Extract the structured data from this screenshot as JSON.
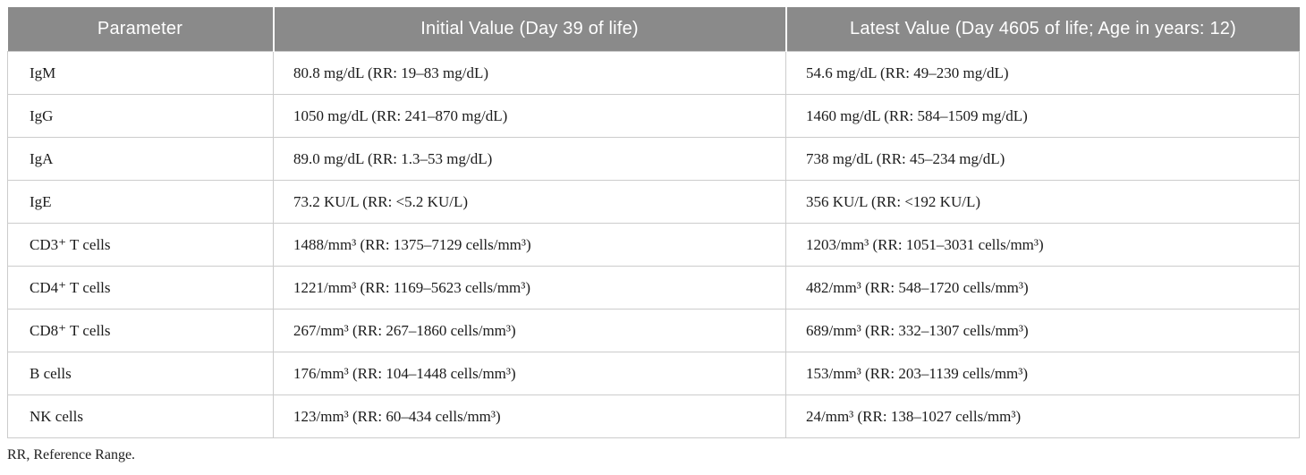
{
  "table": {
    "columns": [
      "Parameter",
      "Initial Value (Day 39 of life)",
      "Latest Value (Day 4605 of life; Age in years: 12)"
    ],
    "rows": [
      {
        "param": "IgM",
        "initial": "80.8 mg/dL (RR: 19–83 mg/dL)",
        "latest": "54.6 mg/dL (RR: 49–230 mg/dL)"
      },
      {
        "param": "IgG",
        "initial": "1050 mg/dL (RR: 241–870 mg/dL)",
        "latest": "1460 mg/dL (RR: 584–1509 mg/dL)"
      },
      {
        "param": "IgA",
        "initial": "89.0 mg/dL (RR: 1.3–53 mg/dL)",
        "latest": "738 mg/dL (RR: 45–234 mg/dL)"
      },
      {
        "param": "IgE",
        "initial": "73.2 KU/L (RR: <5.2 KU/L)",
        "latest": "356 KU/L (RR: <192 KU/L)"
      },
      {
        "param": "CD3⁺ T cells",
        "initial": "1488/mm³ (RR: 1375–7129 cells/mm³)",
        "latest": "1203/mm³ (RR: 1051–3031 cells/mm³)"
      },
      {
        "param": "CD4⁺ T cells",
        "initial": "1221/mm³ (RR: 1169–5623 cells/mm³)",
        "latest": "482/mm³ (RR: 548–1720 cells/mm³)"
      },
      {
        "param": "CD8⁺ T cells",
        "initial": "267/mm³ (RR: 267–1860 cells/mm³)",
        "latest": "689/mm³ (RR: 332–1307 cells/mm³)"
      },
      {
        "param": "B cells",
        "initial": "176/mm³ (RR: 104–1448 cells/mm³)",
        "latest": "153/mm³ (RR: 203–1139 cells/mm³)"
      },
      {
        "param": "NK cells",
        "initial": "123/mm³ (RR: 60–434 cells/mm³)",
        "latest": "24/mm³ (RR: 138–1027 cells/mm³)"
      }
    ]
  },
  "footnote": "RR, Reference Range.",
  "colors": {
    "header_bg": "#8a8a8a",
    "header_text": "#ffffff",
    "cell_border": "#cccccc",
    "body_text": "#1b1b1b"
  }
}
